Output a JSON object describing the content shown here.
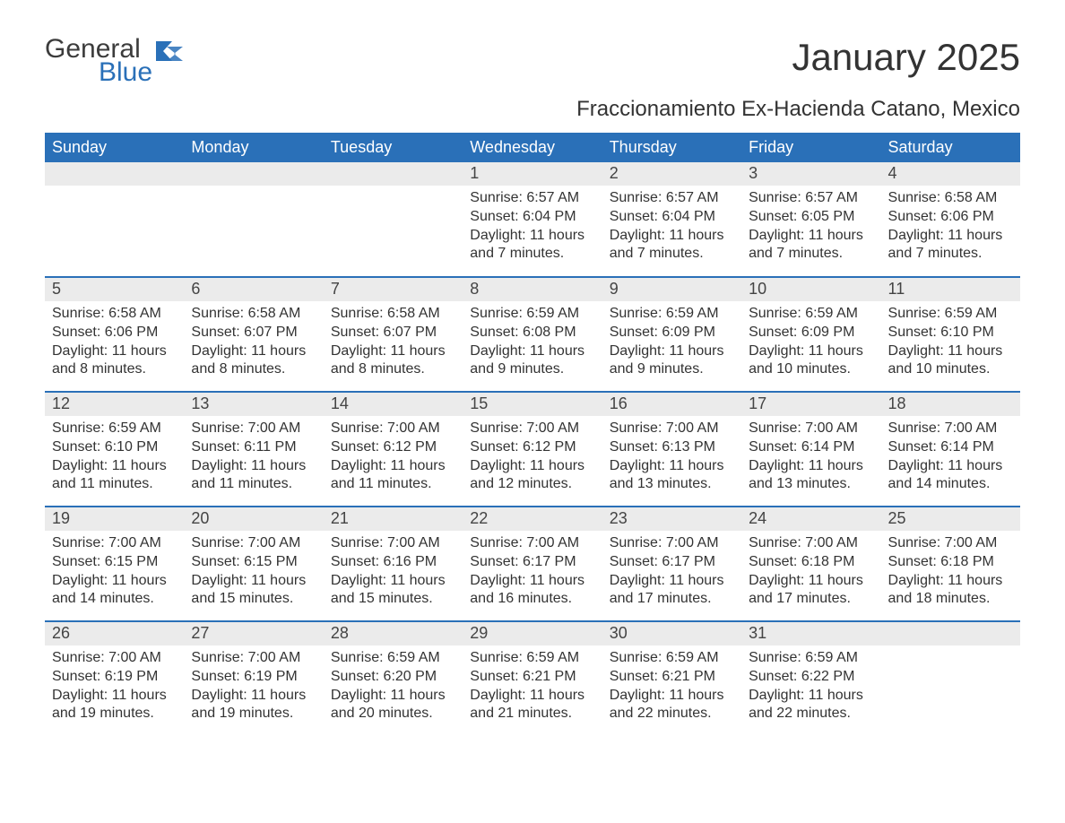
{
  "logo": {
    "text_general": "General",
    "text_blue": "Blue",
    "flag_color": "#2a70b8"
  },
  "header": {
    "month_title": "January 2025",
    "location": "Fraccionamiento Ex-Hacienda Catano, Mexico"
  },
  "colors": {
    "header_bg": "#2a70b8",
    "header_text": "#ffffff",
    "daynum_bg": "#ebebeb",
    "week_border": "#2a70b8",
    "body_text": "#333333",
    "page_bg": "#ffffff"
  },
  "typography": {
    "month_title_fontsize": 42,
    "location_fontsize": 24,
    "dayheader_fontsize": 18,
    "daynum_fontsize": 18,
    "body_fontsize": 16,
    "font_family": "Arial"
  },
  "calendar": {
    "type": "table",
    "day_headers": [
      "Sunday",
      "Monday",
      "Tuesday",
      "Wednesday",
      "Thursday",
      "Friday",
      "Saturday"
    ],
    "weeks": [
      [
        null,
        null,
        null,
        {
          "daynum": "1",
          "sunrise": "Sunrise: 6:57 AM",
          "sunset": "Sunset: 6:04 PM",
          "daylight": "Daylight: 11 hours and 7 minutes."
        },
        {
          "daynum": "2",
          "sunrise": "Sunrise: 6:57 AM",
          "sunset": "Sunset: 6:04 PM",
          "daylight": "Daylight: 11 hours and 7 minutes."
        },
        {
          "daynum": "3",
          "sunrise": "Sunrise: 6:57 AM",
          "sunset": "Sunset: 6:05 PM",
          "daylight": "Daylight: 11 hours and 7 minutes."
        },
        {
          "daynum": "4",
          "sunrise": "Sunrise: 6:58 AM",
          "sunset": "Sunset: 6:06 PM",
          "daylight": "Daylight: 11 hours and 7 minutes."
        }
      ],
      [
        {
          "daynum": "5",
          "sunrise": "Sunrise: 6:58 AM",
          "sunset": "Sunset: 6:06 PM",
          "daylight": "Daylight: 11 hours and 8 minutes."
        },
        {
          "daynum": "6",
          "sunrise": "Sunrise: 6:58 AM",
          "sunset": "Sunset: 6:07 PM",
          "daylight": "Daylight: 11 hours and 8 minutes."
        },
        {
          "daynum": "7",
          "sunrise": "Sunrise: 6:58 AM",
          "sunset": "Sunset: 6:07 PM",
          "daylight": "Daylight: 11 hours and 8 minutes."
        },
        {
          "daynum": "8",
          "sunrise": "Sunrise: 6:59 AM",
          "sunset": "Sunset: 6:08 PM",
          "daylight": "Daylight: 11 hours and 9 minutes."
        },
        {
          "daynum": "9",
          "sunrise": "Sunrise: 6:59 AM",
          "sunset": "Sunset: 6:09 PM",
          "daylight": "Daylight: 11 hours and 9 minutes."
        },
        {
          "daynum": "10",
          "sunrise": "Sunrise: 6:59 AM",
          "sunset": "Sunset: 6:09 PM",
          "daylight": "Daylight: 11 hours and 10 minutes."
        },
        {
          "daynum": "11",
          "sunrise": "Sunrise: 6:59 AM",
          "sunset": "Sunset: 6:10 PM",
          "daylight": "Daylight: 11 hours and 10 minutes."
        }
      ],
      [
        {
          "daynum": "12",
          "sunrise": "Sunrise: 6:59 AM",
          "sunset": "Sunset: 6:10 PM",
          "daylight": "Daylight: 11 hours and 11 minutes."
        },
        {
          "daynum": "13",
          "sunrise": "Sunrise: 7:00 AM",
          "sunset": "Sunset: 6:11 PM",
          "daylight": "Daylight: 11 hours and 11 minutes."
        },
        {
          "daynum": "14",
          "sunrise": "Sunrise: 7:00 AM",
          "sunset": "Sunset: 6:12 PM",
          "daylight": "Daylight: 11 hours and 11 minutes."
        },
        {
          "daynum": "15",
          "sunrise": "Sunrise: 7:00 AM",
          "sunset": "Sunset: 6:12 PM",
          "daylight": "Daylight: 11 hours and 12 minutes."
        },
        {
          "daynum": "16",
          "sunrise": "Sunrise: 7:00 AM",
          "sunset": "Sunset: 6:13 PM",
          "daylight": "Daylight: 11 hours and 13 minutes."
        },
        {
          "daynum": "17",
          "sunrise": "Sunrise: 7:00 AM",
          "sunset": "Sunset: 6:14 PM",
          "daylight": "Daylight: 11 hours and 13 minutes."
        },
        {
          "daynum": "18",
          "sunrise": "Sunrise: 7:00 AM",
          "sunset": "Sunset: 6:14 PM",
          "daylight": "Daylight: 11 hours and 14 minutes."
        }
      ],
      [
        {
          "daynum": "19",
          "sunrise": "Sunrise: 7:00 AM",
          "sunset": "Sunset: 6:15 PM",
          "daylight": "Daylight: 11 hours and 14 minutes."
        },
        {
          "daynum": "20",
          "sunrise": "Sunrise: 7:00 AM",
          "sunset": "Sunset: 6:15 PM",
          "daylight": "Daylight: 11 hours and 15 minutes."
        },
        {
          "daynum": "21",
          "sunrise": "Sunrise: 7:00 AM",
          "sunset": "Sunset: 6:16 PM",
          "daylight": "Daylight: 11 hours and 15 minutes."
        },
        {
          "daynum": "22",
          "sunrise": "Sunrise: 7:00 AM",
          "sunset": "Sunset: 6:17 PM",
          "daylight": "Daylight: 11 hours and 16 minutes."
        },
        {
          "daynum": "23",
          "sunrise": "Sunrise: 7:00 AM",
          "sunset": "Sunset: 6:17 PM",
          "daylight": "Daylight: 11 hours and 17 minutes."
        },
        {
          "daynum": "24",
          "sunrise": "Sunrise: 7:00 AM",
          "sunset": "Sunset: 6:18 PM",
          "daylight": "Daylight: 11 hours and 17 minutes."
        },
        {
          "daynum": "25",
          "sunrise": "Sunrise: 7:00 AM",
          "sunset": "Sunset: 6:18 PM",
          "daylight": "Daylight: 11 hours and 18 minutes."
        }
      ],
      [
        {
          "daynum": "26",
          "sunrise": "Sunrise: 7:00 AM",
          "sunset": "Sunset: 6:19 PM",
          "daylight": "Daylight: 11 hours and 19 minutes."
        },
        {
          "daynum": "27",
          "sunrise": "Sunrise: 7:00 AM",
          "sunset": "Sunset: 6:19 PM",
          "daylight": "Daylight: 11 hours and 19 minutes."
        },
        {
          "daynum": "28",
          "sunrise": "Sunrise: 6:59 AM",
          "sunset": "Sunset: 6:20 PM",
          "daylight": "Daylight: 11 hours and 20 minutes."
        },
        {
          "daynum": "29",
          "sunrise": "Sunrise: 6:59 AM",
          "sunset": "Sunset: 6:21 PM",
          "daylight": "Daylight: 11 hours and 21 minutes."
        },
        {
          "daynum": "30",
          "sunrise": "Sunrise: 6:59 AM",
          "sunset": "Sunset: 6:21 PM",
          "daylight": "Daylight: 11 hours and 22 minutes."
        },
        {
          "daynum": "31",
          "sunrise": "Sunrise: 6:59 AM",
          "sunset": "Sunset: 6:22 PM",
          "daylight": "Daylight: 11 hours and 22 minutes."
        },
        null
      ]
    ]
  }
}
